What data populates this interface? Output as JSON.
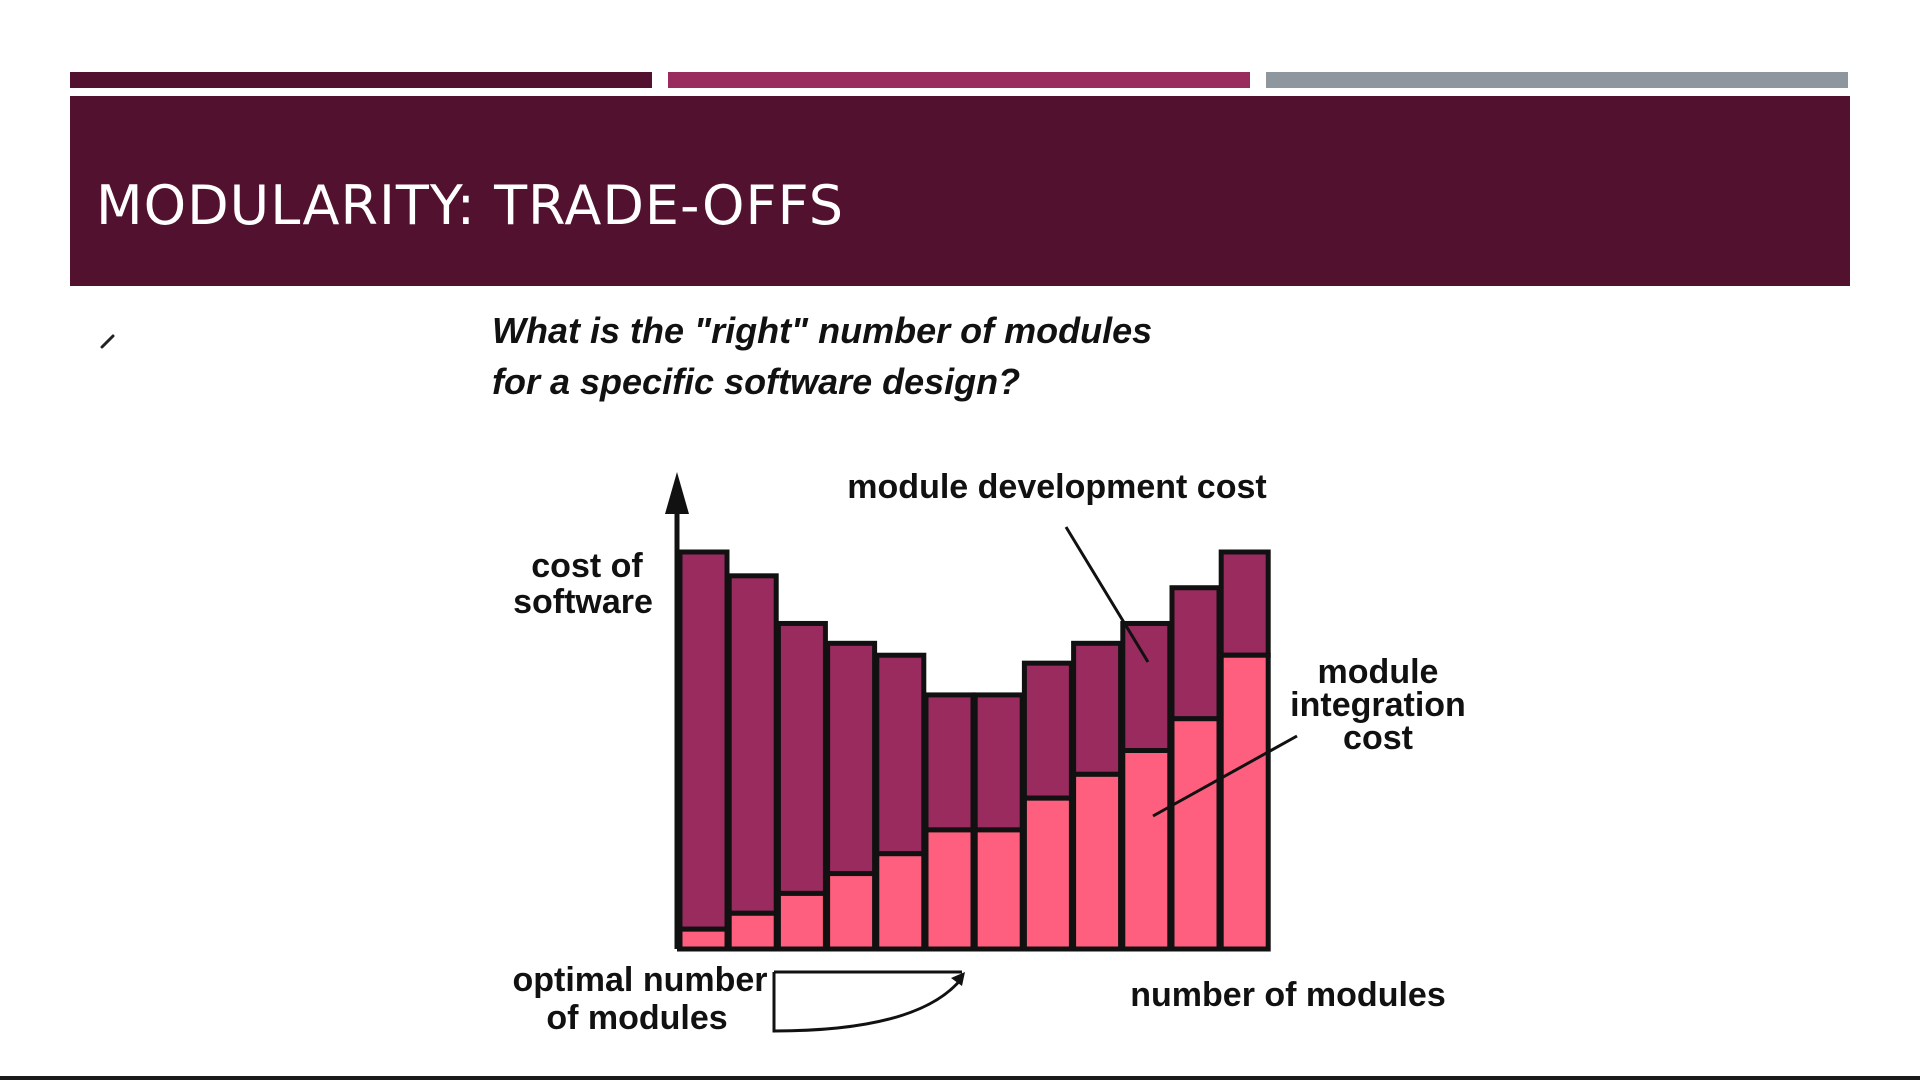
{
  "slide": {
    "title": "MODULARITY: TRADE-OFFS",
    "question_lines": [
      "What is the \"right\" number of modules",
      "for a specific software design?"
    ]
  },
  "colors": {
    "title_band": "#531130",
    "accent_bar_left": "#531130",
    "accent_bar_mid": "#9a2b5f",
    "accent_bar_right": "#8e979d",
    "development_cost": "#9a2b5f",
    "integration_cost": "#ff5f7e"
  },
  "icons": {
    "pen_mark": "pen-cursor-icon",
    "axis_arrow": "up-arrow-icon"
  },
  "chart_data": {
    "type": "bar",
    "stacked": true,
    "ylabel_lines": [
      "cost of",
      "software"
    ],
    "xlabel": "number of modules",
    "series": [
      {
        "name": "module integration cost",
        "name_lines": [
          "module",
          "integration",
          "cost"
        ],
        "values": [
          5,
          9,
          14,
          19,
          24,
          30,
          30,
          38,
          44,
          50,
          58,
          74
        ]
      },
      {
        "name": "module development cost",
        "name_lines": [
          "module development cost"
        ],
        "values": [
          95,
          85,
          68,
          58,
          50,
          34,
          34,
          34,
          33,
          32,
          33,
          26
        ]
      }
    ],
    "ylim": [
      0,
      100
    ],
    "annotations": [
      {
        "text": "optimal number of modules",
        "lines": [
          "optimal number",
          "of modules"
        ]
      }
    ],
    "grid": false,
    "legend": "none"
  }
}
